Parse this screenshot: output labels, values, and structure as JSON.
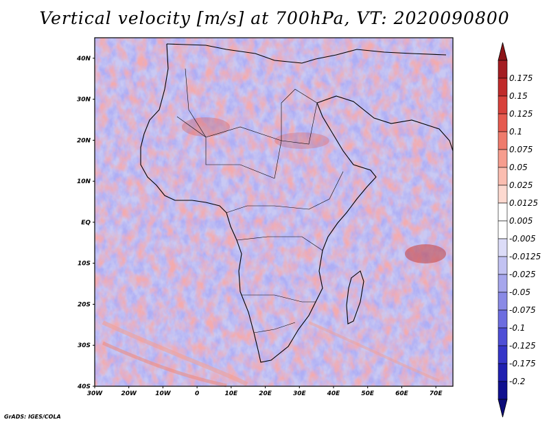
{
  "title": "Vertical velocity [m/s] at 700hPa, VT: 2020090800",
  "credit": "GrADS: IGES/COLA",
  "map": {
    "type": "heatmap",
    "lat_labels": [
      "40N",
      "30N",
      "20N",
      "10N",
      "EQ",
      "10S",
      "20S",
      "30S",
      "40S"
    ],
    "lon_labels": [
      "30W",
      "20W",
      "10W",
      "0",
      "10E",
      "20E",
      "30E",
      "40E",
      "50E",
      "60E",
      "70E"
    ],
    "lon_range": [
      -30,
      75
    ],
    "lat_range": [
      -40,
      45
    ]
  },
  "colorbar": {
    "levels": [
      "0.175",
      "0.15",
      "0.125",
      "0.1",
      "0.075",
      "0.05",
      "0.025",
      "0.0125",
      "0.005",
      "-0.005",
      "-0.0125",
      "-0.025",
      "-0.05",
      "-0.075",
      "-0.1",
      "-0.125",
      "-0.175",
      "-0.2"
    ],
    "colors": [
      "#a41d22",
      "#c02a2a",
      "#d8413b",
      "#e65a4f",
      "#ef7b6c",
      "#f69d8e",
      "#fbbdb0",
      "#fdd9d0",
      "#ffffff",
      "#ffffff",
      "#dcdcf8",
      "#c2c2f2",
      "#a6a6ec",
      "#8a8ae6",
      "#6d6de0",
      "#4e4ed6",
      "#3535c8",
      "#2020b0",
      "#10108f"
    ],
    "top_arrow_color": "#8c1418",
    "bottom_arrow_color": "#0c0c7a"
  }
}
